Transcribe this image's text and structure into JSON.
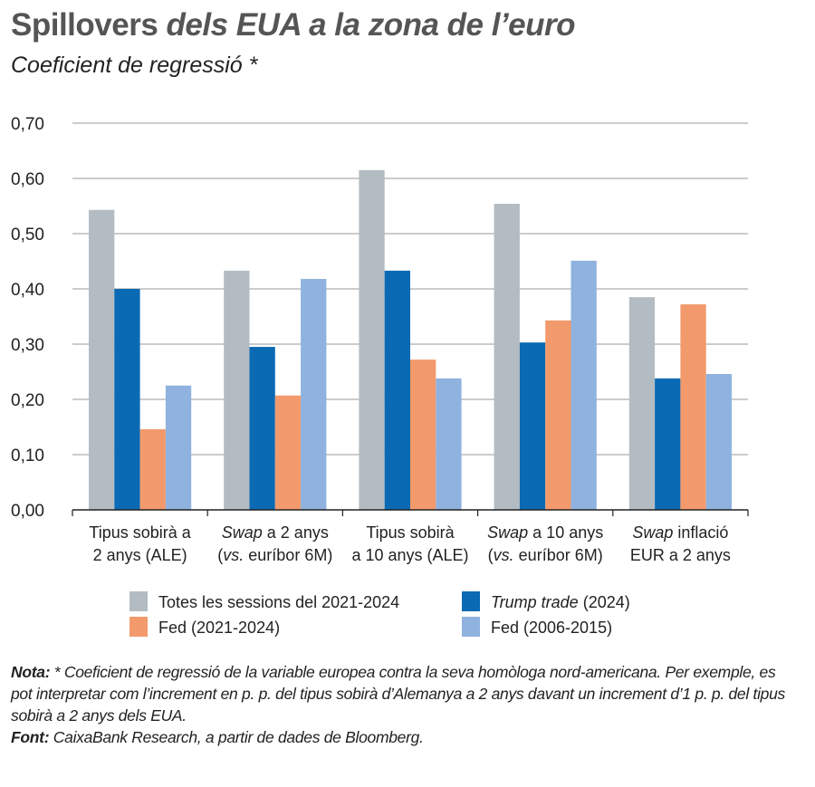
{
  "title": {
    "main": "Spillovers",
    "italic": "dels EUA a la zona de l’euro"
  },
  "subtitle": "Coeficient de regressió *",
  "chart_data": {
    "type": "bar",
    "ylim": [
      0,
      0.7
    ],
    "grid": true,
    "yticks": [
      "0,00",
      "0,10",
      "0,20",
      "0,30",
      "0,40",
      "0,50",
      "0,60",
      "0,70"
    ],
    "categories": [
      [
        [
          {
            "t": "Tipus sobirà a",
            "i": false
          }
        ],
        [
          {
            "t": "2 anys (ALE)",
            "i": false
          }
        ]
      ],
      [
        [
          {
            "t": "Swap",
            "i": true
          },
          {
            "t": " a 2 anys",
            "i": false
          }
        ],
        [
          {
            "t": "(",
            "i": false
          },
          {
            "t": "vs.",
            "i": true
          },
          {
            "t": " euríbor 6M)",
            "i": false
          }
        ]
      ],
      [
        [
          {
            "t": "Tipus sobirà",
            "i": false
          }
        ],
        [
          {
            "t": "a 10 anys (ALE)",
            "i": false
          }
        ]
      ],
      [
        [
          {
            "t": "Swap",
            "i": true
          },
          {
            "t": " a 10 anys",
            "i": false
          }
        ],
        [
          {
            "t": "(",
            "i": false
          },
          {
            "t": "vs.",
            "i": true
          },
          {
            "t": " euríbor 6M)",
            "i": false
          }
        ]
      ],
      [
        [
          {
            "t": "Swap",
            "i": true
          },
          {
            "t": " inflació",
            "i": false
          }
        ],
        [
          {
            "t": "EUR a 2 anys",
            "i": false
          }
        ]
      ]
    ],
    "series": [
      {
        "name": "Totes les sessions del 2021-2024",
        "italic_part": "",
        "color": "#b3bcc2",
        "values": [
          0.543,
          0.433,
          0.615,
          0.554,
          0.385
        ]
      },
      {
        "name": " (2024)",
        "italic_part": "Trump trade",
        "color": "#0a6ab3",
        "values": [
          0.4,
          0.295,
          0.433,
          0.303,
          0.238
        ]
      },
      {
        "name": "Fed (2021-2024)",
        "italic_part": "",
        "color": "#f29a6c",
        "values": [
          0.146,
          0.207,
          0.272,
          0.343,
          0.372
        ]
      },
      {
        "name": "Fed (2006-2015)",
        "italic_part": "",
        "color": "#8fb2de",
        "values": [
          0.225,
          0.418,
          0.238,
          0.451,
          0.246
        ]
      }
    ],
    "legend_position": "bottom"
  },
  "notes": {
    "nota_label": "Nota:",
    "nota_text": " * Coeficient de regressió de la variable europea contra la seva homòloga nord-americana. Per exemple, es pot interpretar com l’increment en p. p. del tipus sobirà d’Alemanya a 2 anys davant un increment d’1 p. p. del tipus sobirà a 2 anys dels EUA.",
    "font_label": "Font:",
    "font_text": " CaixaBank Research, a partir de dades de Bloomberg."
  }
}
